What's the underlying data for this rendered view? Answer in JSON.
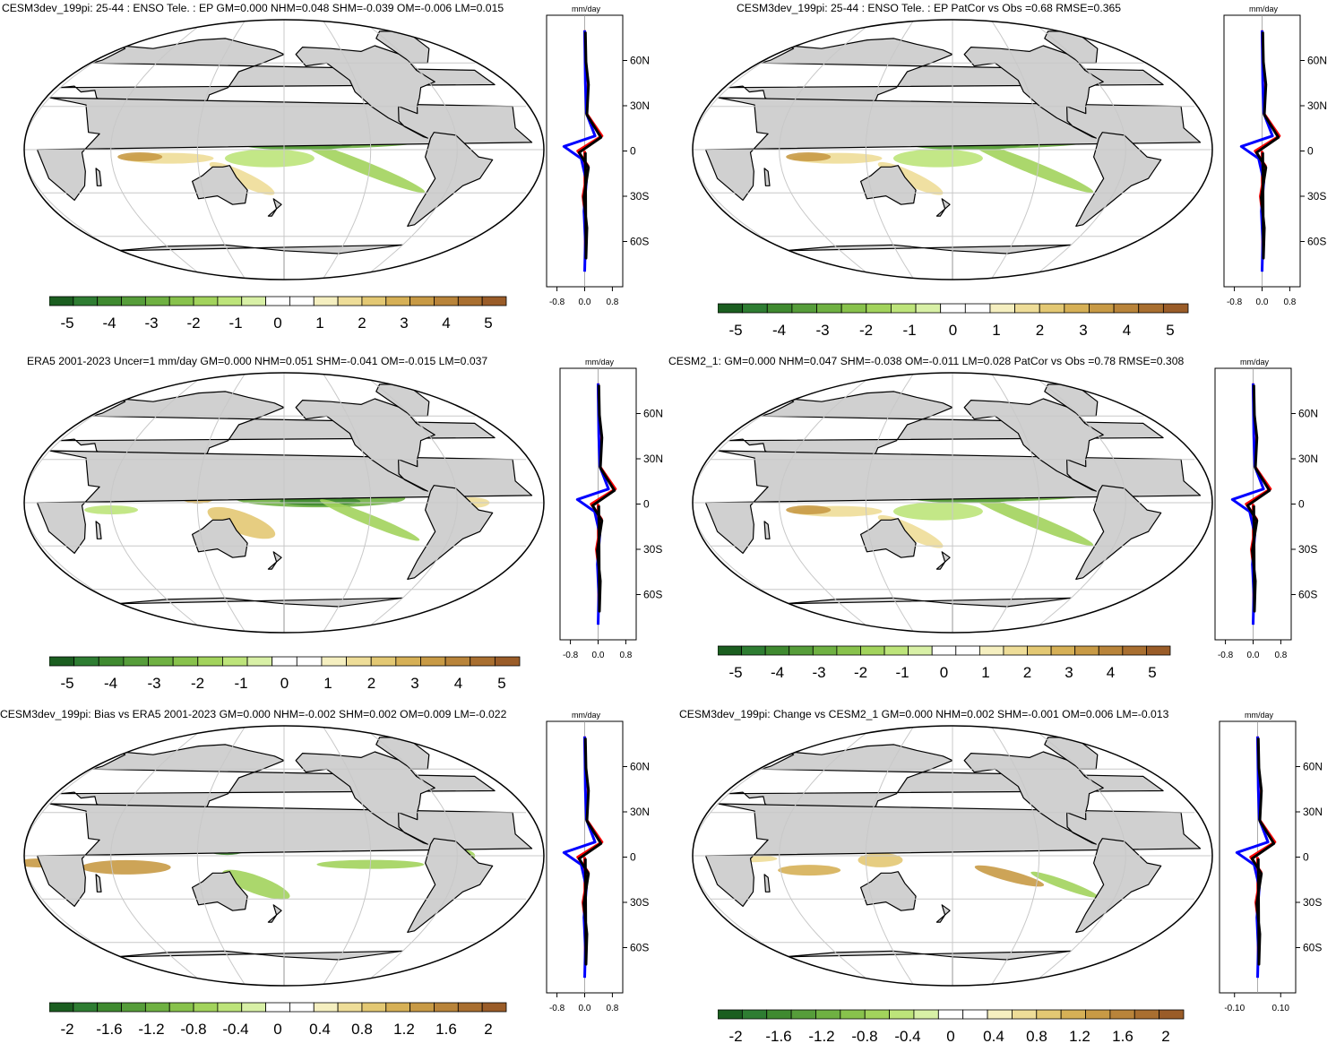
{
  "unit_label": "mm/day",
  "lat_ticks": [
    "60N",
    "30N",
    "0",
    "30S",
    "60S"
  ],
  "colors": {
    "green": [
      "#1b5e20",
      "#2e7d32",
      "#3f8a30",
      "#569d3a",
      "#6fb142",
      "#88c24c",
      "#a2d35c",
      "#bde47a",
      "#d8f0a6",
      "#ffffff",
      "#ffffff",
      "#f5efc0",
      "#eedd98",
      "#e3c873",
      "#d6b056",
      "#c89a45",
      "#b9843a",
      "#a96f30",
      "#9a5c28"
    ],
    "land": "#d0d0d0",
    "series_model": "#ff0000",
    "series_obs": "#0000ff",
    "series_diff": "#000000"
  },
  "panels": [
    {
      "title": "CESM3dev_199pi: 25-44 : ENSO Tele. : EP GM=0.000 NHM=0.048 SHM=-0.039 OM=-0.006 LM=0.015",
      "xticks": [
        "-0.8",
        "0.0",
        "0.8"
      ],
      "cbar_labels": [
        "-5",
        "-4",
        "-3",
        "-2",
        "-1",
        "0",
        "1",
        "2",
        "3",
        "4",
        "5"
      ],
      "field": "model"
    },
    {
      "title": "CESM3dev_199pi: 25-44 : ENSO Tele. : EP PatCor vs Obs =0.68 RMSE=0.365",
      "xticks": [
        "-0.8",
        "0.0",
        "0.8"
      ],
      "cbar_labels": [
        "-5",
        "-4",
        "-3",
        "-2",
        "-1",
        "0",
        "1",
        "2",
        "3",
        "4",
        "5"
      ],
      "field": "model"
    },
    {
      "title": "ERA5 2001-2023 Uncer=1 mm/day GM=0.000 NHM=0.051 SHM=-0.041 OM=-0.015 LM=0.037",
      "xticks": [
        "-0.8",
        "0.0",
        "0.8"
      ],
      "cbar_labels": [
        "-5",
        "-4",
        "-3",
        "-2",
        "-1",
        "0",
        "1",
        "2",
        "3",
        "4",
        "5"
      ],
      "field": "obs"
    },
    {
      "title": "CESM2_1: GM=0.000 NHM=0.047 SHM=-0.038 OM=-0.011 LM=0.028 PatCor vs Obs =0.78 RMSE=0.308",
      "xticks": [
        "-0.8",
        "0.0",
        "0.8"
      ],
      "cbar_labels": [
        "-5",
        "-4",
        "-3",
        "-2",
        "-1",
        "0",
        "1",
        "2",
        "3",
        "4",
        "5"
      ],
      "field": "model"
    },
    {
      "title": "CESM3dev_199pi: Bias vs ERA5 2001-2023 GM=0.000 NHM=-0.002 SHM=0.002 OM=0.009 LM=-0.022",
      "xticks": [
        "-0.8",
        "0.0",
        "0.8"
      ],
      "cbar_labels": [
        "-2",
        "-1.6",
        "-1.2",
        "-0.8",
        "-0.4",
        "0",
        "0.4",
        "0.8",
        "1.2",
        "1.6",
        "2"
      ],
      "field": "bias"
    },
    {
      "title": "CESM3dev_199pi: Change vs CESM2_1 GM=0.000 NHM=0.002 SHM=-0.001 OM=0.006 LM=-0.013",
      "xticks": [
        "-0.10",
        "0.10"
      ],
      "cbar_labels": [
        "-2",
        "-1.6",
        "-1.2",
        "-0.8",
        "-0.4",
        "0",
        "0.4",
        "0.8",
        "1.2",
        "1.6",
        "2"
      ],
      "field": "change"
    }
  ]
}
